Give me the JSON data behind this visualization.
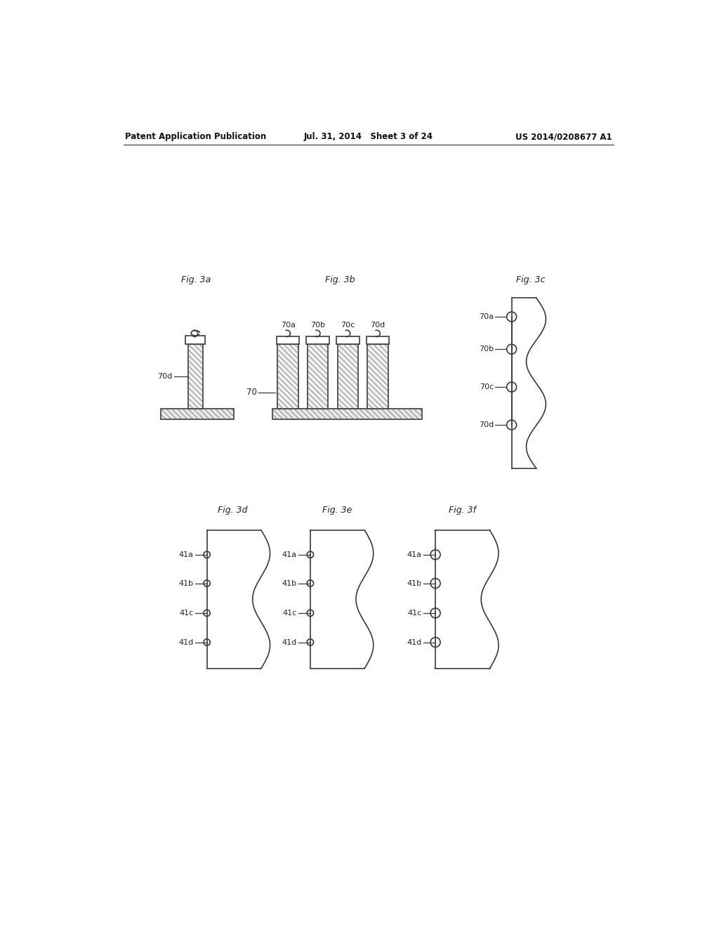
{
  "header_left": "Patent Application Publication",
  "header_mid": "Jul. 31, 2014   Sheet 3 of 24",
  "header_right": "US 2014/0208677 A1",
  "fig3a_label": "Fig. 3a",
  "fig3b_label": "Fig. 3b",
  "fig3c_label": "Fig. 3c",
  "fig3d_label": "Fig. 3d",
  "fig3e_label": "Fig. 3e",
  "fig3f_label": "Fig. 3f",
  "bg_color": "#ffffff",
  "line_color": "#3a3a3a"
}
